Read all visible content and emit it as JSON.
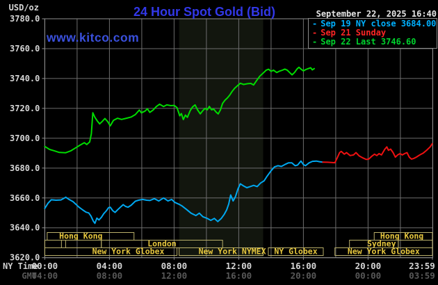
{
  "header": {
    "units_label": "USD/oz",
    "title": "24 Hour Spot Gold (Bid)",
    "date_text": "September 22, 2025 16:40",
    "watermark": "www.kitco.com"
  },
  "legend": {
    "marker": "-",
    "items": [
      {
        "label": "Sep 19 NY close 3684.00",
        "color": "#00b0ff"
      },
      {
        "label": "Sep 21 Sunday",
        "color": "#ff2525"
      },
      {
        "label": "Sep 22 Last 3746.60",
        "color": "#00d22d"
      }
    ]
  },
  "xaxis": {
    "ny_label": "NY Time",
    "gmt_label": "GMT"
  },
  "colors": {
    "background": "#000000",
    "grid": "#6e6e6e",
    "border": "#8f8f8f",
    "nymex_band": "#12160e",
    "tick_label": "#d6d6d6",
    "gmt_label": "#585858",
    "session_border": "#b9af6a",
    "session_text": "#e5c63e"
  },
  "chart_data": {
    "type": "line",
    "title": "24 Hour Spot Gold (Bid)",
    "ylabel": "USD/oz",
    "xlim_hours": [
      0,
      24
    ],
    "ylim": [
      3620,
      3780
    ],
    "grid_x_step_hours": 2,
    "y_ticks": [
      3780,
      3760,
      3740,
      3720,
      3700,
      3680,
      3660,
      3640,
      3620
    ],
    "x_ticks": [
      {
        "hour": 0,
        "ny": "00:00",
        "gmt": "04:00"
      },
      {
        "hour": 4,
        "ny": "04:00",
        "gmt": "08:00"
      },
      {
        "hour": 8,
        "ny": "08:00",
        "gmt": "12:00"
      },
      {
        "hour": 12,
        "ny": "12:00",
        "gmt": "16:00"
      },
      {
        "hour": 16,
        "ny": "16:00",
        "gmt": "20:00"
      },
      {
        "hour": 20,
        "ny": "20:00",
        "gmt": "00:00"
      },
      {
        "hour": 23.983,
        "ny": "23:59",
        "gmt": "03:59"
      }
    ],
    "nymex_band_hours": [
      8.31,
      13.51
    ],
    "series": [
      {
        "name": "Sep 19 NY close",
        "color": "#00a8f0",
        "points": [
          [
            0,
            3653
          ],
          [
            0.2,
            3656.5
          ],
          [
            0.4,
            3658.8
          ],
          [
            0.7,
            3658.5
          ],
          [
            1.0,
            3658.7
          ],
          [
            1.15,
            3659.5
          ],
          [
            1.3,
            3660.5
          ],
          [
            1.5,
            3659
          ],
          [
            1.75,
            3657.5
          ],
          [
            1.95,
            3655.5
          ],
          [
            2.1,
            3654
          ],
          [
            2.35,
            3652
          ],
          [
            2.55,
            3650.5
          ],
          [
            2.72,
            3650
          ],
          [
            2.85,
            3648
          ],
          [
            3.0,
            3644.5
          ],
          [
            3.1,
            3643
          ],
          [
            3.22,
            3646.5
          ],
          [
            3.35,
            3645.3
          ],
          [
            3.5,
            3647
          ],
          [
            3.65,
            3649.5
          ],
          [
            3.8,
            3651.3
          ],
          [
            3.95,
            3653.5
          ],
          [
            4.05,
            3653.8
          ],
          [
            4.2,
            3651.5
          ],
          [
            4.35,
            3650.3
          ],
          [
            4.5,
            3652
          ],
          [
            4.65,
            3653.5
          ],
          [
            4.85,
            3655.5
          ],
          [
            5.0,
            3654.3
          ],
          [
            5.15,
            3653.8
          ],
          [
            5.35,
            3655.2
          ],
          [
            5.6,
            3657.8
          ],
          [
            5.8,
            3658.5
          ],
          [
            6.05,
            3659
          ],
          [
            6.3,
            3658.5
          ],
          [
            6.5,
            3658.3
          ],
          [
            6.78,
            3659.5
          ],
          [
            7.05,
            3658
          ],
          [
            7.35,
            3660
          ],
          [
            7.62,
            3658
          ],
          [
            7.85,
            3659
          ],
          [
            8.05,
            3657
          ],
          [
            8.3,
            3655.8
          ],
          [
            8.5,
            3654.6
          ],
          [
            8.77,
            3652.3
          ],
          [
            9.05,
            3649.8
          ],
          [
            9.35,
            3648.2
          ],
          [
            9.56,
            3649.8
          ],
          [
            9.78,
            3647.4
          ],
          [
            10.05,
            3646.3
          ],
          [
            10.27,
            3645
          ],
          [
            10.49,
            3646.3
          ],
          [
            10.7,
            3644.2
          ],
          [
            10.92,
            3646.3
          ],
          [
            11.1,
            3649
          ],
          [
            11.25,
            3652
          ],
          [
            11.38,
            3656
          ],
          [
            11.5,
            3662
          ],
          [
            11.65,
            3658
          ],
          [
            11.8,
            3661
          ],
          [
            11.95,
            3666
          ],
          [
            12.1,
            3669.5
          ],
          [
            12.28,
            3668.2
          ],
          [
            12.5,
            3666.9
          ],
          [
            12.71,
            3667.6
          ],
          [
            12.92,
            3668.4
          ],
          [
            13.14,
            3667.6
          ],
          [
            13.35,
            3670
          ],
          [
            13.57,
            3671.5
          ],
          [
            13.75,
            3674.5
          ],
          [
            14.0,
            3678.2
          ],
          [
            14.21,
            3680.8
          ],
          [
            14.42,
            3681.6
          ],
          [
            14.64,
            3681.1
          ],
          [
            14.85,
            3682.4
          ],
          [
            15.07,
            3683.5
          ],
          [
            15.28,
            3683.5
          ],
          [
            15.49,
            3681.6
          ],
          [
            15.64,
            3682
          ],
          [
            15.85,
            3684.7
          ],
          [
            16.0,
            3682.4
          ],
          [
            16.13,
            3681.6
          ],
          [
            16.35,
            3683.5
          ],
          [
            16.56,
            3684.5
          ],
          [
            16.8,
            3684.7
          ],
          [
            17.0,
            3684.3
          ],
          [
            17.2,
            3684
          ]
        ]
      },
      {
        "name": "Sep 21 Sunday",
        "color": "#ee1111",
        "points": [
          [
            17.2,
            3684
          ],
          [
            17.5,
            3683.9
          ],
          [
            17.95,
            3683.6
          ],
          [
            18.1,
            3687
          ],
          [
            18.24,
            3690.4
          ],
          [
            18.34,
            3691.2
          ],
          [
            18.53,
            3689.3
          ],
          [
            18.67,
            3690.4
          ],
          [
            18.89,
            3688.4
          ],
          [
            19.1,
            3688.8
          ],
          [
            19.25,
            3690.4
          ],
          [
            19.46,
            3688.1
          ],
          [
            19.68,
            3686.8
          ],
          [
            19.89,
            3685.8
          ],
          [
            20.04,
            3686
          ],
          [
            20.25,
            3688.1
          ],
          [
            20.4,
            3689.3
          ],
          [
            20.54,
            3688.4
          ],
          [
            20.68,
            3689.7
          ],
          [
            20.83,
            3688.8
          ],
          [
            21.04,
            3692.7
          ],
          [
            21.16,
            3694.2
          ],
          [
            21.26,
            3691.9
          ],
          [
            21.4,
            3692.7
          ],
          [
            21.55,
            3690.4
          ],
          [
            21.69,
            3687.3
          ],
          [
            21.83,
            3688.8
          ],
          [
            21.98,
            3689.7
          ],
          [
            22.12,
            3688.8
          ],
          [
            22.26,
            3689.7
          ],
          [
            22.41,
            3690.4
          ],
          [
            22.55,
            3687.3
          ],
          [
            22.69,
            3686
          ],
          [
            22.84,
            3686.5
          ],
          [
            22.98,
            3687.3
          ],
          [
            23.2,
            3688.8
          ],
          [
            23.41,
            3690
          ],
          [
            23.63,
            3692
          ],
          [
            23.84,
            3694.2
          ],
          [
            23.97,
            3696.3
          ]
        ]
      },
      {
        "name": "Sep 22 Last",
        "color": "#00dc00",
        "points": [
          [
            0,
            3694.5
          ],
          [
            0.3,
            3692.5
          ],
          [
            0.6,
            3691.5
          ],
          [
            0.9,
            3690.5
          ],
          [
            1.3,
            3690.3
          ],
          [
            1.6,
            3691.5
          ],
          [
            1.9,
            3693.5
          ],
          [
            2.2,
            3695.5
          ],
          [
            2.45,
            3697
          ],
          [
            2.6,
            3695.8
          ],
          [
            2.78,
            3697.5
          ],
          [
            2.88,
            3703
          ],
          [
            2.97,
            3717
          ],
          [
            3.1,
            3714
          ],
          [
            3.25,
            3711.5
          ],
          [
            3.4,
            3709.6
          ],
          [
            3.55,
            3711.2
          ],
          [
            3.72,
            3713.2
          ],
          [
            3.9,
            3711
          ],
          [
            4.05,
            3708.3
          ],
          [
            4.25,
            3712
          ],
          [
            4.5,
            3713.4
          ],
          [
            4.75,
            3712.6
          ],
          [
            5.05,
            3713.4
          ],
          [
            5.35,
            3714.2
          ],
          [
            5.6,
            3715.8
          ],
          [
            5.85,
            3718.9
          ],
          [
            5.98,
            3717
          ],
          [
            6.2,
            3718.2
          ],
          [
            6.35,
            3719.7
          ],
          [
            6.5,
            3717.3
          ],
          [
            6.7,
            3718.9
          ],
          [
            6.9,
            3721.2
          ],
          [
            7.1,
            3722.8
          ],
          [
            7.35,
            3721.2
          ],
          [
            7.55,
            3722.3
          ],
          [
            7.8,
            3721.8
          ],
          [
            8.0,
            3722
          ],
          [
            8.18,
            3720.5
          ],
          [
            8.35,
            3715
          ],
          [
            8.45,
            3716.5
          ],
          [
            8.57,
            3712.5
          ],
          [
            8.7,
            3715.5
          ],
          [
            8.82,
            3714
          ],
          [
            9.0,
            3718.5
          ],
          [
            9.15,
            3721
          ],
          [
            9.3,
            3722.3
          ],
          [
            9.45,
            3719
          ],
          [
            9.62,
            3716.3
          ],
          [
            9.78,
            3718.5
          ],
          [
            9.92,
            3720
          ],
          [
            10.05,
            3719
          ],
          [
            10.18,
            3721.3
          ],
          [
            10.32,
            3719
          ],
          [
            10.45,
            3719.5
          ],
          [
            10.6,
            3717.5
          ],
          [
            10.73,
            3716.3
          ],
          [
            10.87,
            3719
          ],
          [
            11.0,
            3723.3
          ],
          [
            11.15,
            3725.5
          ],
          [
            11.3,
            3727
          ],
          [
            11.45,
            3729
          ],
          [
            11.6,
            3731.5
          ],
          [
            11.75,
            3733.5
          ],
          [
            11.9,
            3735
          ],
          [
            12.1,
            3736.8
          ],
          [
            12.3,
            3736
          ],
          [
            12.55,
            3736.5
          ],
          [
            12.75,
            3736.7
          ],
          [
            12.92,
            3735.7
          ],
          [
            13.1,
            3738.5
          ],
          [
            13.3,
            3741.5
          ],
          [
            13.55,
            3744
          ],
          [
            13.7,
            3745.6
          ],
          [
            13.85,
            3746.2
          ],
          [
            14.0,
            3744.8
          ],
          [
            14.15,
            3745.6
          ],
          [
            14.35,
            3744
          ],
          [
            14.5,
            3744.8
          ],
          [
            14.7,
            3745.6
          ],
          [
            14.85,
            3746.3
          ],
          [
            15.0,
            3745.6
          ],
          [
            15.15,
            3744
          ],
          [
            15.3,
            3742.5
          ],
          [
            15.45,
            3744
          ],
          [
            15.6,
            3746.3
          ],
          [
            15.72,
            3747.5
          ],
          [
            15.85,
            3746.3
          ],
          [
            16.0,
            3745.1
          ],
          [
            16.15,
            3746
          ],
          [
            16.3,
            3746.6
          ],
          [
            16.45,
            3747.2
          ],
          [
            16.55,
            3745.8
          ],
          [
            16.67,
            3746.6
          ]
        ]
      }
    ],
    "sessions": {
      "rows": [
        [
          {
            "label": "Hong Kong",
            "start": 0.15,
            "end": 5.52,
            "dx": -14
          },
          {
            "label": "Hong Kong",
            "start": 20.38,
            "end": 23.98,
            "dx": -2
          }
        ],
        [
          {
            "label": "",
            "start": 0.0,
            "end": 1.03,
            "dx": 0
          },
          {
            "label": "",
            "start": 1.29,
            "end": 3.5,
            "dx": 0
          },
          {
            "label": "London",
            "start": 3.5,
            "end": 11.0,
            "dx": 0
          },
          {
            "label": "Sydney",
            "start": 18.85,
            "end": 21.87,
            "dx": 11
          },
          {
            "label": "",
            "start": 21.87,
            "end": 23.98,
            "dx": 0
          }
        ],
        [
          {
            "label": "New York Globex",
            "start": 0.0,
            "end": 8.18,
            "dx": 25
          },
          {
            "label": "New York NYMEX",
            "start": 8.31,
            "end": 13.51,
            "dx": 16
          },
          {
            "label": "NY Globex",
            "start": 13.83,
            "end": 17.23,
            "dx": 0
          },
          {
            "label": "New York Globex",
            "start": 17.95,
            "end": 23.98,
            "dx": 0
          }
        ]
      ]
    }
  }
}
